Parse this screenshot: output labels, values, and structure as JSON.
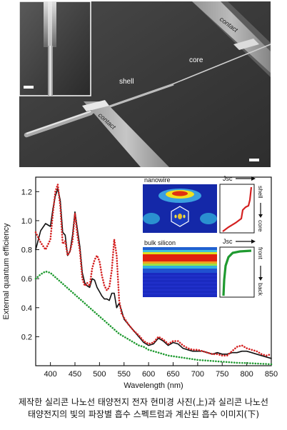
{
  "sem": {
    "labels": {
      "shell": "shell",
      "core": "core",
      "contact_upper": "contact",
      "contact_lower": "contact"
    }
  },
  "chart_data": {
    "type": "line",
    "xlabel": "Wavelength (nm)",
    "ylabel": "External quantum efficiency",
    "xlim": [
      370,
      850
    ],
    "ylim": [
      0,
      1.3
    ],
    "xticks": [
      400,
      450,
      500,
      550,
      600,
      650,
      700,
      750,
      800,
      850
    ],
    "yticks": [
      0.2,
      0.4,
      0.6,
      0.8,
      1.0,
      1.2
    ],
    "grid": false,
    "series": [
      {
        "color": "#111111",
        "style": "solid",
        "x": [
          370,
          380,
          390,
          400,
          405,
          410,
          415,
          420,
          425,
          430,
          435,
          440,
          445,
          450,
          455,
          460,
          465,
          470,
          475,
          480,
          485,
          490,
          495,
          500,
          505,
          510,
          515,
          520,
          525,
          530,
          535,
          540,
          545,
          550,
          560,
          570,
          580,
          590,
          600,
          610,
          620,
          630,
          640,
          650,
          660,
          670,
          680,
          690,
          700,
          710,
          720,
          730,
          740,
          750,
          760,
          770,
          780,
          790,
          800,
          810,
          820,
          830,
          840,
          850
        ],
        "y": [
          0.8,
          0.93,
          0.98,
          0.96,
          1.08,
          1.17,
          1.22,
          1.14,
          0.92,
          0.9,
          0.76,
          0.79,
          0.9,
          1.06,
          0.94,
          0.82,
          0.64,
          0.57,
          0.55,
          0.54,
          0.6,
          0.59,
          0.54,
          0.51,
          0.48,
          0.46,
          0.46,
          0.45,
          0.5,
          0.5,
          0.4,
          0.43,
          0.38,
          0.32,
          0.28,
          0.24,
          0.2,
          0.16,
          0.14,
          0.15,
          0.19,
          0.17,
          0.14,
          0.16,
          0.15,
          0.12,
          0.11,
          0.1,
          0.1,
          0.1,
          0.09,
          0.08,
          0.09,
          0.08,
          0.08,
          0.09,
          0.09,
          0.1,
          0.1,
          0.09,
          0.08,
          0.07,
          0.06,
          0.05
        ]
      },
      {
        "color": "#d42020",
        "style": "dotted",
        "x": [
          370,
          380,
          390,
          400,
          405,
          410,
          415,
          420,
          425,
          430,
          435,
          440,
          445,
          450,
          455,
          460,
          465,
          470,
          475,
          480,
          485,
          490,
          495,
          500,
          505,
          510,
          515,
          520,
          525,
          530,
          535,
          540,
          545,
          550,
          560,
          570,
          580,
          590,
          600,
          610,
          620,
          630,
          640,
          650,
          660,
          670,
          680,
          690,
          700,
          710,
          720,
          730,
          740,
          750,
          760,
          770,
          780,
          790,
          800,
          810,
          820,
          830,
          840,
          850
        ],
        "y": [
          0.92,
          0.85,
          0.8,
          0.87,
          1.05,
          1.2,
          1.25,
          1.1,
          0.84,
          0.86,
          0.76,
          0.79,
          0.86,
          1.05,
          0.9,
          0.79,
          0.6,
          0.55,
          0.57,
          0.55,
          0.67,
          0.73,
          0.76,
          0.72,
          0.62,
          0.55,
          0.52,
          0.54,
          0.66,
          0.87,
          0.76,
          0.45,
          0.36,
          0.33,
          0.28,
          0.24,
          0.21,
          0.17,
          0.15,
          0.16,
          0.2,
          0.18,
          0.15,
          0.17,
          0.17,
          0.14,
          0.12,
          0.11,
          0.11,
          0.1,
          0.09,
          0.08,
          0.08,
          0.07,
          0.07,
          0.1,
          0.13,
          0.14,
          0.12,
          0.11,
          0.1,
          0.08,
          0.07,
          0.08
        ]
      },
      {
        "color": "#1f9a30",
        "style": "dotted",
        "x": [
          370,
          380,
          390,
          400,
          410,
          420,
          430,
          440,
          450,
          460,
          470,
          480,
          490,
          500,
          510,
          520,
          530,
          540,
          550,
          560,
          570,
          580,
          590,
          600,
          620,
          640,
          660,
          680,
          700,
          720,
          740,
          760,
          780,
          800,
          820,
          840,
          850
        ],
        "y": [
          0.6,
          0.63,
          0.65,
          0.64,
          0.61,
          0.58,
          0.55,
          0.52,
          0.49,
          0.46,
          0.43,
          0.4,
          0.37,
          0.34,
          0.31,
          0.28,
          0.25,
          0.22,
          0.2,
          0.18,
          0.16,
          0.14,
          0.13,
          0.11,
          0.09,
          0.07,
          0.06,
          0.05,
          0.04,
          0.035,
          0.03,
          0.025,
          0.02,
          0.018,
          0.015,
          0.012,
          0.01
        ]
      }
    ]
  },
  "insets": {
    "nanowire": {
      "title": "nanowire",
      "axis_label": "Jsc",
      "top": "shell",
      "bottom": "core"
    },
    "bulk": {
      "title": "bulk silicon",
      "axis_label": "Jsc",
      "top": "front",
      "bottom": "back"
    }
  },
  "caption": [
    "제작한 실리콘 나노선 태양전지 전자 현미경 사진(上)과 실리콘 나노선",
    "태양전지의 빛의 파장별 흡수 스펙트럼과 계산된 흡수 이미지(下)"
  ],
  "colors": {
    "sem_bg": "#3a3a3a",
    "black_series": "#111111",
    "red_series": "#d42020",
    "green_series": "#1f9a30"
  }
}
